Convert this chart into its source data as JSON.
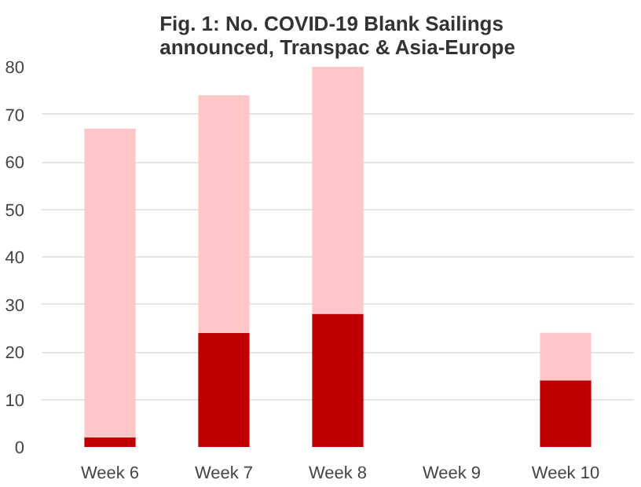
{
  "chart_data": {
    "type": "bar",
    "stacked": true,
    "title": "Fig. 1: No. COVID-19 Blank Sailings\nannounced, Transpac & Asia-Europe",
    "categories": [
      "Week 6",
      "Week 7",
      "Week 8",
      "Week 9",
      "Week 10"
    ],
    "series": [
      {
        "color": "#c00000",
        "values": [
          2,
          24,
          28,
          null,
          14
        ]
      },
      {
        "color": "#ffc7c7",
        "values": [
          65,
          50,
          52,
          null,
          10
        ]
      }
    ],
    "ylim": [
      0,
      80
    ],
    "yticks": [
      0,
      10,
      20,
      30,
      40,
      50,
      60,
      70,
      80
    ],
    "grid": "y"
  }
}
